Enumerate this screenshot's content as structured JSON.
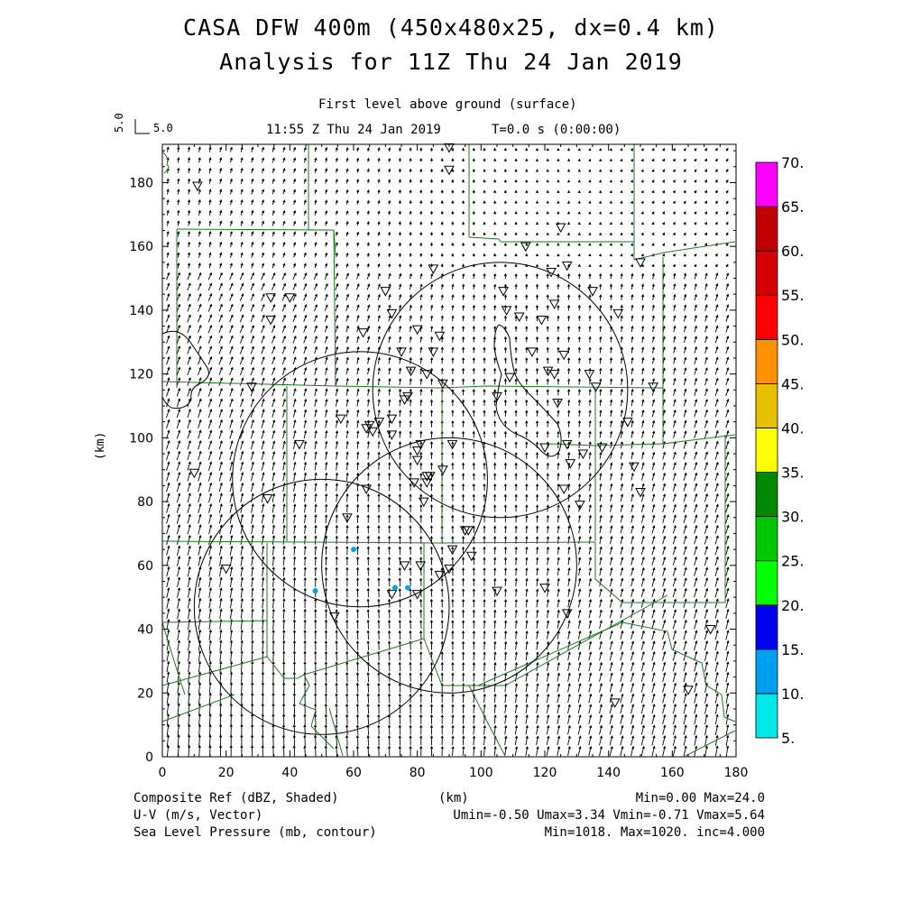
{
  "header": {
    "title_line1": "CASA DFW 400m (450x480x25, dx=0.4 km)",
    "title_line2": "Analysis for 11Z Thu 24 Jan 2019",
    "level": "First level above ground (surface)",
    "valid_time": "11:55 Z Thu 24 Jan 2019",
    "forecast_time": "T=0.0 s (0:00:00)",
    "ref_vector_y": "5.0",
    "ref_vector_x": "5.0"
  },
  "footer": {
    "field1": "Composite Ref (dBZ, Shaded)",
    "field1_stats": "Min=0.00 Max=24.0",
    "field2": "U-V (m/s, Vector)",
    "field2_stats": "Umin=-0.50 Umax=3.34 Vmin=-0.71 Vmax=5.64",
    "field3": "Sea Level Pressure (mb, contour)",
    "field3_stats": "Min=1018. Max=1020. inc=4.000"
  },
  "chart_data": {
    "type": "map",
    "xlabel": "(km)",
    "ylabel": "(km)",
    "xlim": [
      0,
      180
    ],
    "ylim": [
      0,
      192
    ],
    "xticks": [
      0,
      20,
      40,
      60,
      80,
      100,
      120,
      140,
      160,
      180
    ],
    "yticks": [
      0,
      20,
      40,
      60,
      80,
      100,
      120,
      140,
      160,
      180
    ],
    "colorbar": {
      "levels": [
        "5.",
        "10.",
        "15.",
        "20.",
        "25.",
        "30.",
        "35.",
        "40.",
        "45.",
        "50.",
        "55.",
        "60.",
        "65.",
        "70."
      ],
      "colors": [
        "#00e8e8",
        "#00a0f0",
        "#0000f0",
        "#00ff00",
        "#00c800",
        "#008800",
        "#ffff00",
        "#e7c000",
        "#ff9000",
        "#ff0000",
        "#d60000",
        "#c00000",
        "#ff00ff"
      ]
    },
    "radar_range_rings": [
      {
        "center_km": [
          50,
          47
        ],
        "radius_km": 40
      },
      {
        "center_km": [
          62,
          87
        ],
        "radius_km": 40
      },
      {
        "center_km": [
          90,
          60
        ],
        "radius_km": 40
      },
      {
        "center_km": [
          106,
          115
        ],
        "radius_km": 40
      }
    ],
    "reflectivity_echoes_km": [
      [
        48,
        52
      ],
      [
        60,
        65
      ],
      [
        73,
        53
      ],
      [
        77,
        53
      ]
    ],
    "wind": {
      "u_mean": 0.6,
      "v_mean": 3.5
    },
    "stations_km": [
      [
        11,
        179
      ],
      [
        90,
        191
      ],
      [
        90,
        184
      ],
      [
        125,
        166
      ],
      [
        150,
        155
      ],
      [
        143,
        139
      ],
      [
        135,
        146
      ],
      [
        127,
        154
      ],
      [
        122,
        152
      ],
      [
        114,
        160
      ],
      [
        85,
        153
      ],
      [
        70,
        146
      ],
      [
        72,
        139
      ],
      [
        80,
        134
      ],
      [
        85,
        127
      ],
      [
        75,
        127
      ],
      [
        87,
        132
      ],
      [
        40,
        144
      ],
      [
        34,
        144
      ],
      [
        34,
        137
      ],
      [
        63,
        133
      ],
      [
        107,
        146
      ],
      [
        108,
        140
      ],
      [
        112,
        138
      ],
      [
        119,
        137
      ],
      [
        123,
        142
      ],
      [
        109,
        119
      ],
      [
        116,
        127
      ],
      [
        121,
        121
      ],
      [
        123,
        120
      ],
      [
        126,
        126
      ],
      [
        134,
        120
      ],
      [
        136,
        116
      ],
      [
        154,
        116
      ],
      [
        124,
        111
      ],
      [
        105,
        113
      ],
      [
        83,
        120
      ],
      [
        88,
        117
      ],
      [
        78,
        121
      ],
      [
        77,
        113
      ],
      [
        76,
        112
      ],
      [
        72,
        106
      ],
      [
        68,
        105
      ],
      [
        65,
        104
      ],
      [
        66,
        102
      ],
      [
        64,
        103
      ],
      [
        72,
        101
      ],
      [
        56,
        106
      ],
      [
        43,
        98
      ],
      [
        81,
        98
      ],
      [
        91,
        98
      ],
      [
        80,
        96
      ],
      [
        80,
        93
      ],
      [
        120,
        97
      ],
      [
        127,
        98
      ],
      [
        132,
        95
      ],
      [
        128,
        92
      ],
      [
        146,
        105
      ],
      [
        148,
        91
      ],
      [
        126,
        84
      ],
      [
        131,
        79
      ],
      [
        88,
        90
      ],
      [
        84,
        88
      ],
      [
        83,
        88
      ],
      [
        83,
        86
      ],
      [
        79,
        86
      ],
      [
        82,
        80
      ],
      [
        64,
        84
      ],
      [
        58,
        75
      ],
      [
        33,
        81
      ],
      [
        10,
        89
      ],
      [
        150,
        83
      ],
      [
        138,
        97
      ],
      [
        96,
        71
      ],
      [
        95,
        71
      ],
      [
        91,
        65
      ],
      [
        97,
        63
      ],
      [
        20,
        59
      ],
      [
        81,
        60
      ],
      [
        76,
        60
      ],
      [
        87,
        57
      ],
      [
        90,
        59
      ],
      [
        72,
        51
      ],
      [
        80,
        51
      ],
      [
        105,
        52
      ],
      [
        120,
        53
      ],
      [
        127,
        45
      ],
      [
        54,
        44
      ],
      [
        142,
        17
      ],
      [
        165,
        21
      ],
      [
        172,
        40
      ],
      [
        28,
        116
      ]
    ]
  }
}
